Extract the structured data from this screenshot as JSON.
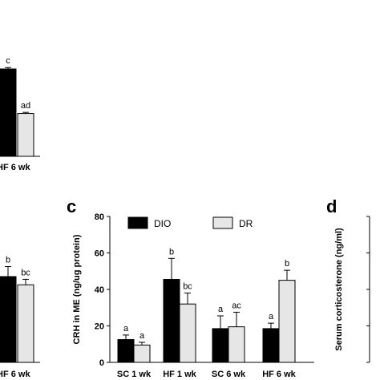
{
  "panels": {
    "c": "c",
    "d": "d"
  },
  "chart_data": [
    {
      "panel": "top-left (cropped)",
      "type": "bar",
      "categories": [
        "HF 6  wk"
      ],
      "series": [
        {
          "name": "DIO",
          "values": [
            310
          ],
          "errors": [
            5
          ],
          "color": "#000000"
        },
        {
          "name": "DR",
          "values": [
            152
          ],
          "errors": [
            4
          ],
          "color": "#e6e6e6"
        }
      ],
      "letters": [
        [
          "c"
        ],
        [
          "ad"
        ]
      ],
      "xlabel": "",
      "ylabel": ""
    },
    {
      "panel": "bottom-left (cropped)",
      "type": "bar",
      "categories": [
        "HF 6  wk"
      ],
      "series": [
        {
          "name": "DIO",
          "values": [
            47
          ],
          "errors": [
            5.5
          ],
          "color": "#000000"
        },
        {
          "name": "DR",
          "values": [
            42.5
          ],
          "errors": [
            3
          ],
          "color": "#e6e6e6"
        }
      ],
      "letters": [
        [
          "b"
        ],
        [
          "bc"
        ]
      ],
      "xlabel": "",
      "ylabel": ""
    },
    {
      "panel": "c",
      "type": "bar",
      "categories": [
        "SC 1  wk",
        "HF 1  wk",
        "SC 6  wk",
        "HF 6  wk"
      ],
      "series": [
        {
          "name": "DIO",
          "values": [
            12.5,
            45.5,
            18.5,
            18.5
          ],
          "errors": [
            2.5,
            11.5,
            7,
            3
          ],
          "color": "#000000"
        },
        {
          "name": "DR",
          "values": [
            9.5,
            32,
            19.5,
            45
          ],
          "errors": [
            1.5,
            6,
            8,
            5.5
          ],
          "color": "#e6e6e6"
        }
      ],
      "letters": [
        [
          "a",
          "b",
          "a",
          "a"
        ],
        [
          "a",
          "bc",
          "ac",
          "b"
        ]
      ],
      "ylabel": "CRH in ME (ng/ug protein)",
      "xlabel": "",
      "ylim": [
        0,
        80
      ],
      "yticks": [
        "0",
        "20",
        "40",
        "60",
        "80"
      ],
      "legend": [
        "DIO",
        "DR"
      ]
    },
    {
      "panel": "d",
      "type": "bar",
      "categories": [],
      "series": [],
      "ylabel": "Serum corticosterone (ng/ml)"
    }
  ]
}
